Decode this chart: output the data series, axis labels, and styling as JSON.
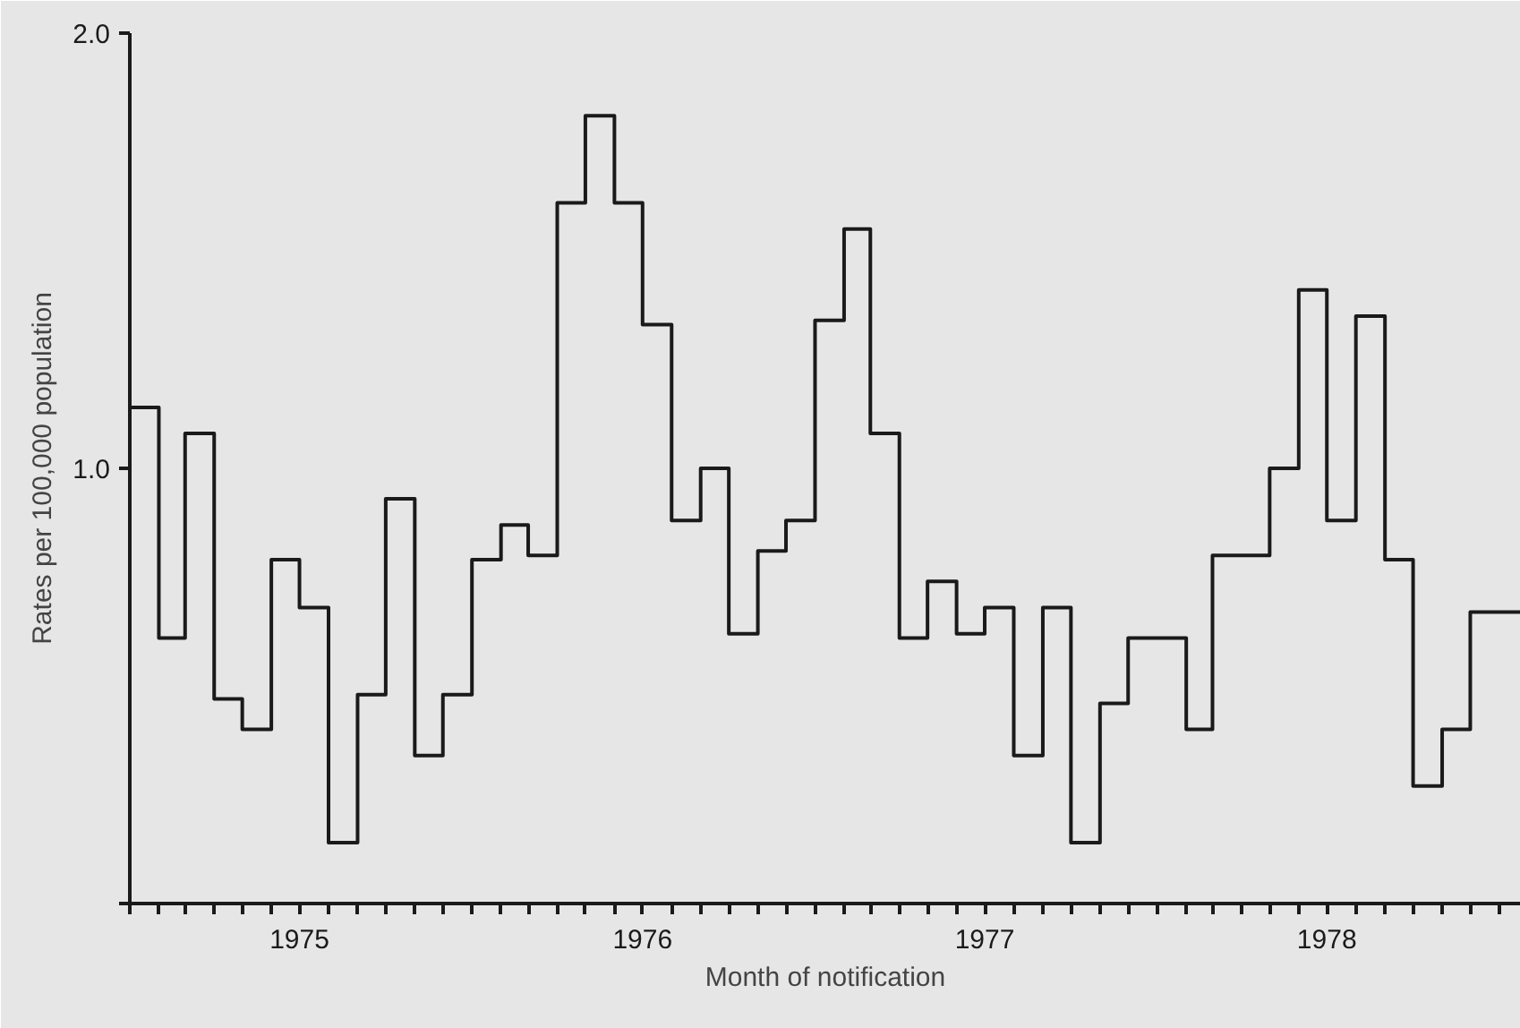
{
  "chart_data": {
    "type": "step",
    "xlabel": "Month of notification",
    "ylabel": "Rates per 100,000 population",
    "x": [
      "1975-01",
      "1975-02",
      "1975-03",
      "1975-04",
      "1975-05",
      "1975-06",
      "1975-07",
      "1975-08",
      "1975-09",
      "1975-10",
      "1975-11",
      "1975-12",
      "1976-01",
      "1976-02",
      "1976-03",
      "1976-04",
      "1976-05",
      "1976-06",
      "1976-07",
      "1976-08",
      "1976-09",
      "1976-10",
      "1976-11",
      "1976-12",
      "1977-01",
      "1977-02",
      "1977-03",
      "1977-04",
      "1977-05",
      "1977-06",
      "1977-07",
      "1977-08",
      "1977-09",
      "1977-10",
      "1977-11",
      "1977-12",
      "1978-01",
      "1978-02",
      "1978-03",
      "1978-04",
      "1978-05",
      "1978-06",
      "1978-07",
      "1978-08",
      "1978-09",
      "1978-10",
      "1978-11",
      "1978-12"
    ],
    "series": [
      {
        "color": "#1a1a1a",
        "values": [
          1.14,
          0.61,
          1.08,
          0.47,
          0.4,
          0.79,
          0.68,
          0.14,
          0.48,
          0.93,
          0.34,
          0.48,
          0.79,
          0.87,
          0.8,
          1.61,
          1.81,
          1.61,
          1.33,
          0.88,
          1.0,
          0.62,
          0.81,
          0.88,
          1.34,
          1.55,
          1.08,
          0.61,
          0.74,
          0.62,
          0.68,
          0.34,
          0.68,
          0.14,
          0.46,
          0.61,
          0.61,
          0.4,
          0.8,
          0.8,
          1.0,
          1.41,
          0.88,
          1.35,
          0.79,
          0.27,
          0.4,
          0.67
        ]
      }
    ],
    "xlim": [
      "1975-01-01",
      "1979-01-24"
    ],
    "xticks": [
      {
        "value": "1975-01",
        "label": null
      },
      {
        "value": "1975-02",
        "label": null
      },
      {
        "value": "1975-03",
        "label": null
      },
      {
        "value": "1975-04",
        "label": null
      },
      {
        "value": "1975-05",
        "label": null
      },
      {
        "value": "1975-06",
        "label": null
      },
      {
        "value": "1975-07",
        "label": "1975"
      },
      {
        "value": "1975-08",
        "label": null
      },
      {
        "value": "1975-09",
        "label": null
      },
      {
        "value": "1975-10",
        "label": null
      },
      {
        "value": "1975-11",
        "label": null
      },
      {
        "value": "1975-12",
        "label": null
      },
      {
        "value": "1976-01",
        "label": null
      },
      {
        "value": "1976-02",
        "label": null
      },
      {
        "value": "1976-03",
        "label": null
      },
      {
        "value": "1976-04",
        "label": null
      },
      {
        "value": "1976-05",
        "label": null
      },
      {
        "value": "1976-06",
        "label": null
      },
      {
        "value": "1976-07",
        "label": "1976"
      },
      {
        "value": "1976-08",
        "label": null
      },
      {
        "value": "1976-09",
        "label": null
      },
      {
        "value": "1976-10",
        "label": null
      },
      {
        "value": "1976-11",
        "label": null
      },
      {
        "value": "1976-12",
        "label": null
      },
      {
        "value": "1977-01",
        "label": null
      },
      {
        "value": "1977-02",
        "label": null
      },
      {
        "value": "1977-03",
        "label": null
      },
      {
        "value": "1977-04",
        "label": null
      },
      {
        "value": "1977-05",
        "label": null
      },
      {
        "value": "1977-06",
        "label": null
      },
      {
        "value": "1977-07",
        "label": "1977"
      },
      {
        "value": "1977-08",
        "label": null
      },
      {
        "value": "1977-09",
        "label": null
      },
      {
        "value": "1977-10",
        "label": null
      },
      {
        "value": "1977-11",
        "label": null
      },
      {
        "value": "1977-12",
        "label": null
      },
      {
        "value": "1978-01",
        "label": null
      },
      {
        "value": "1978-02",
        "label": null
      },
      {
        "value": "1978-03",
        "label": null
      },
      {
        "value": "1978-04",
        "label": null
      },
      {
        "value": "1978-05",
        "label": null
      },
      {
        "value": "1978-06",
        "label": null
      },
      {
        "value": "1978-07",
        "label": "1978"
      },
      {
        "value": "1978-08",
        "label": null
      },
      {
        "value": "1978-09",
        "label": null
      },
      {
        "value": "1978-10",
        "label": null
      },
      {
        "value": "1978-11",
        "label": null
      },
      {
        "value": "1978-12",
        "label": null
      },
      {
        "value": "1979-01",
        "label": null
      }
    ],
    "ylim": [
      0,
      2.0
    ],
    "yticks": [
      {
        "value": 0,
        "label": null
      },
      {
        "value": 1.0,
        "label": "1.0"
      },
      {
        "value": 2.0,
        "label": "2.0"
      }
    ]
  }
}
